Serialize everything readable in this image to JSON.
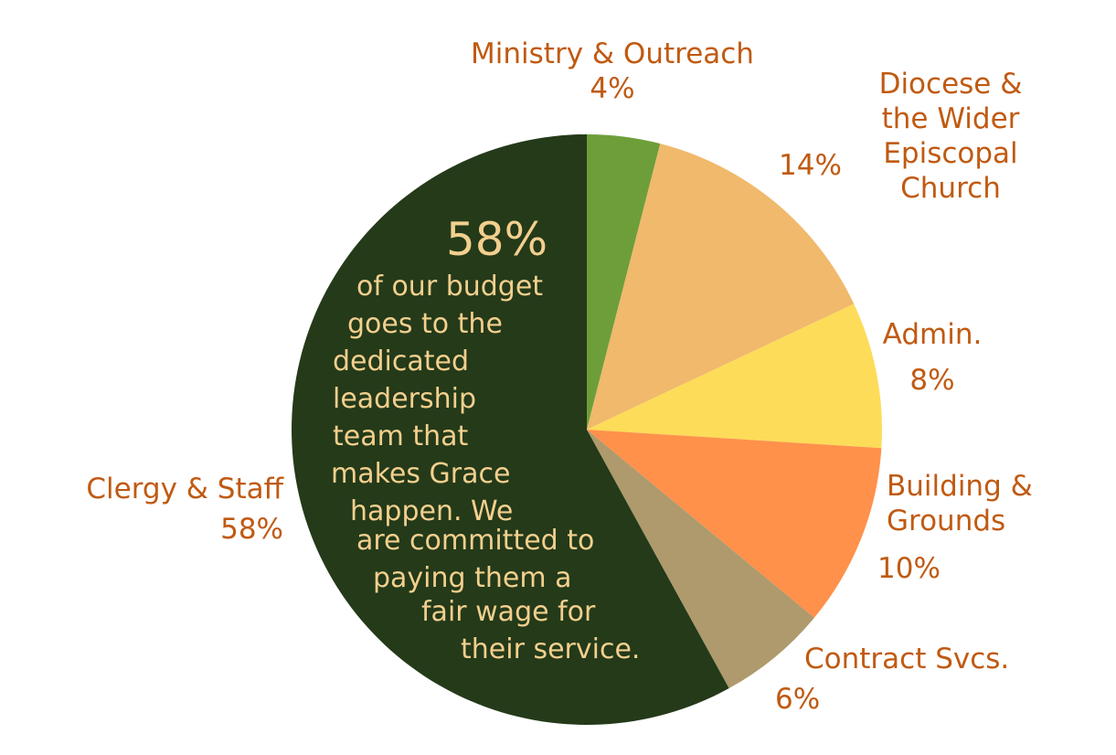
{
  "chart_data": {
    "type": "pie",
    "slices": [
      {
        "name": "Ministry & Outreach",
        "value": 4,
        "label": "4%",
        "color": "#6e9e3a"
      },
      {
        "name": "Diocese & the Wider Episcopal Church",
        "value": 14,
        "label": "14%",
        "color": "#f0b96c"
      },
      {
        "name": "Admin.",
        "value": 8,
        "label": "8%",
        "color": "#fddc59"
      },
      {
        "name": "Building & Grounds",
        "value": 10,
        "label": "10%",
        "color": "#ff914b"
      },
      {
        "name": "Contract Svcs.",
        "value": 6,
        "label": "6%",
        "color": "#ae9a6c"
      },
      {
        "name": "Clergy & Staff",
        "value": 58,
        "label": "58%",
        "color": "#243a19"
      }
    ],
    "labels": {
      "ministry": [
        "Ministry & Outreach",
        "4%"
      ],
      "diocese": [
        "Diocese &",
        "the Wider",
        "Episcopal",
        "Church"
      ],
      "diocese_pct": "14%",
      "admin": [
        "Admin.",
        "8%"
      ],
      "building": [
        "Building &",
        "Grounds",
        "10%"
      ],
      "contract": [
        "Contract Svcs.",
        "6%"
      ],
      "clergy": [
        "Clergy & Staff",
        "58%"
      ]
    },
    "annotation": {
      "big": "58%",
      "lines": [
        "of our budget",
        "goes to the",
        "dedicated",
        "leadership",
        "team that",
        "makes Grace",
        "happen. We",
        "are committed to",
        "paying them a",
        "fair wage for",
        "their service."
      ]
    },
    "label_color": "#c05a12",
    "annotation_color": "#f3cf8e"
  }
}
